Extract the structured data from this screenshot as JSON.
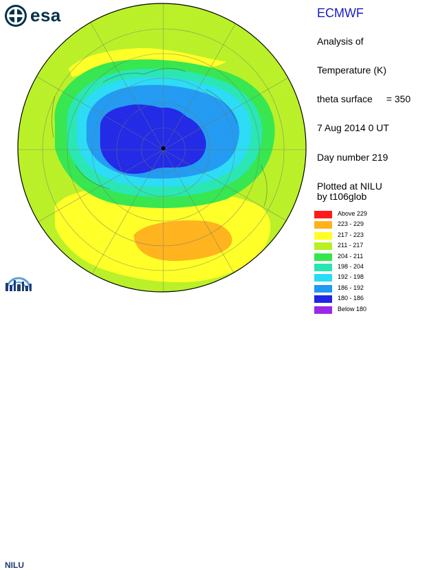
{
  "header": {
    "org": "ECMWF",
    "analysis_label": "Analysis of",
    "quantity": "Temperature (K)",
    "surface_label": "theta surface",
    "surface_value": "= 350",
    "date_line": "7  Aug  2014  0 UT",
    "day_line": "Day number 219",
    "plotted_line": "Plotted at NILU",
    "by_line": "by t106glob"
  },
  "logos": {
    "esa_text": "esa",
    "nilu_text": "NILU"
  },
  "legend": [
    {
      "label": "Above   229",
      "color": "#ff1a1a"
    },
    {
      "label": "223  -  229",
      "color": "#ffb21a"
    },
    {
      "label": "217  -  223",
      "color": "#ffff24"
    },
    {
      "label": "211  -  217",
      "color": "#b8f024"
    },
    {
      "label": "204  -  211",
      "color": "#33e64d"
    },
    {
      "label": "198  -  204",
      "color": "#26e6b2"
    },
    {
      "label": "192  -  198",
      "color": "#29dbf5"
    },
    {
      "label": "186  -  192",
      "color": "#1f99f2"
    },
    {
      "label": "180  -  186",
      "color": "#1f26e6"
    },
    {
      "label": "Below   180",
      "color": "#9928e8"
    }
  ],
  "colors": {
    "esa_blue": "#003247",
    "nilu_blue": "#1f3c74",
    "title_blue": "#1a1acc"
  }
}
